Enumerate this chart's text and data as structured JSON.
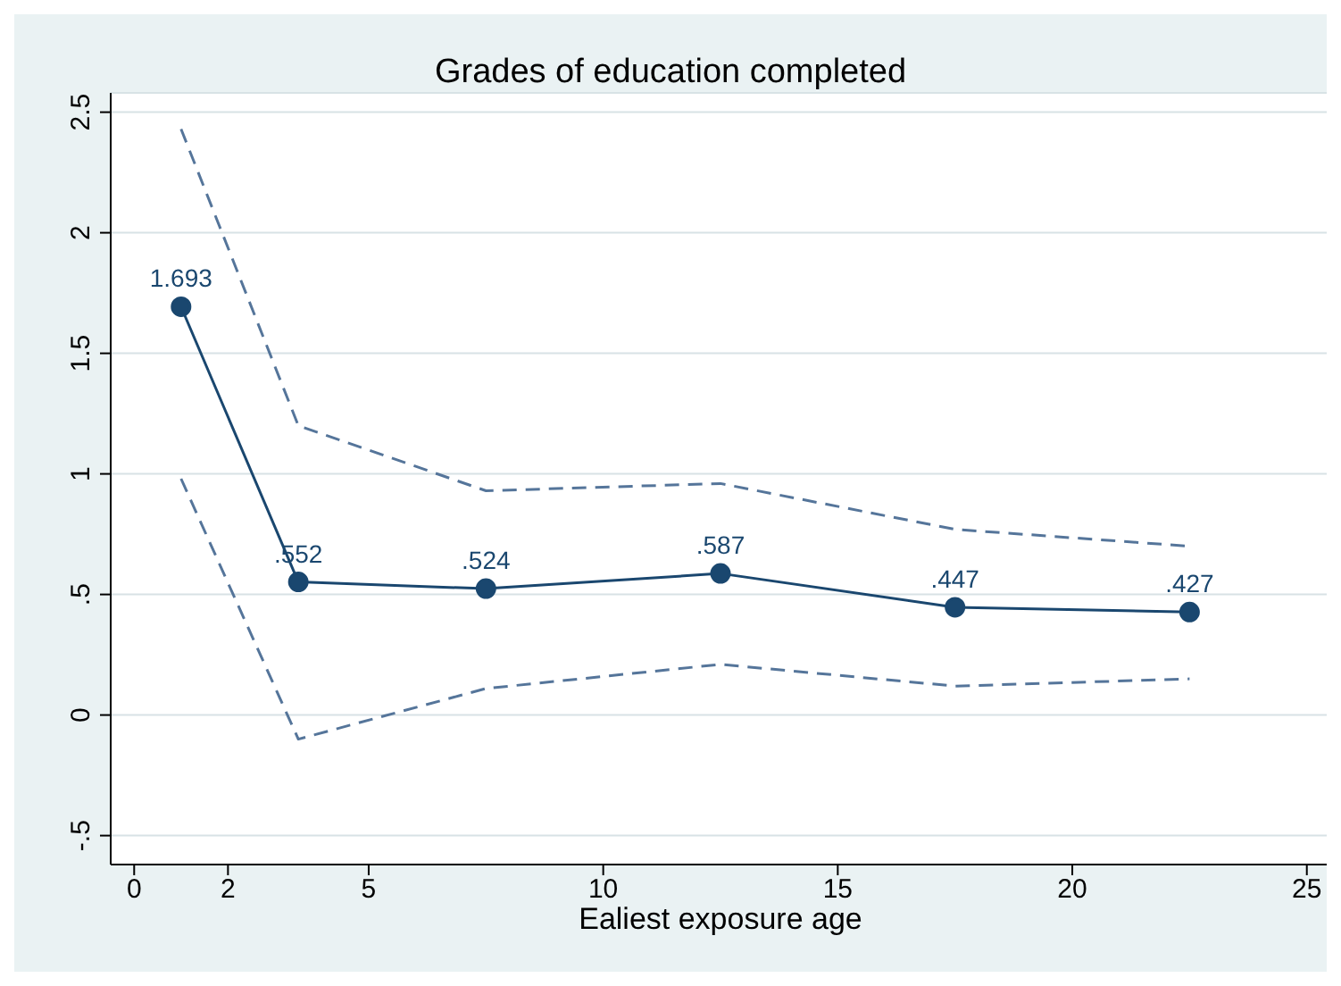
{
  "chart_data": {
    "type": "line",
    "title": "Grades of education completed",
    "xlabel": "Ealiest exposure age",
    "x": [
      1,
      3.5,
      7.5,
      12.5,
      17.5,
      22.5
    ],
    "series": [
      {
        "color": "#1a476f",
        "values": [
          1.693,
          0.552,
          0.524,
          0.587,
          0.447,
          0.427
        ],
        "value_labels": [
          "1.693",
          ".552",
          ".524",
          ".587",
          ".447",
          ".427"
        ],
        "marker": "circle",
        "line_style": "solid"
      },
      {
        "color": "#55759a",
        "values": [
          2.43,
          1.2,
          0.93,
          0.96,
          0.77,
          0.7
        ],
        "marker": "none",
        "line_style": "dashed"
      },
      {
        "color": "#55759a",
        "values": [
          0.98,
          -0.1,
          0.11,
          0.21,
          0.12,
          0.15
        ],
        "marker": "none",
        "line_style": "dashed"
      }
    ],
    "xlim": [
      -0.5,
      25.5
    ],
    "xticks": [
      0,
      2,
      5,
      10,
      15,
      20,
      25
    ],
    "ylim": [
      -0.62,
      2.58
    ],
    "yticks": [
      {
        "value": -0.5,
        "label": "-.5"
      },
      0,
      {
        "value": 0.5,
        "label": ".5"
      },
      1,
      1.5,
      2,
      2.5
    ],
    "grid": "y"
  }
}
